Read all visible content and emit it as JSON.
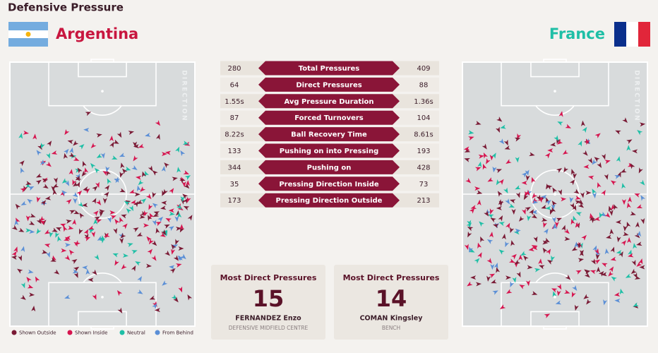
{
  "header": {
    "title": "Defensive Pressure"
  },
  "teams": [
    {
      "name": "Argentina"
    },
    {
      "name": "France"
    }
  ],
  "stats": {
    "rows": [
      {
        "left": "280",
        "label": "Total Pressures",
        "right": "409"
      },
      {
        "left": "64",
        "label": "Direct Pressures",
        "right": "88"
      },
      {
        "left": "1.55s",
        "label": "Avg Pressure Duration",
        "right": "1.36s"
      },
      {
        "left": "87",
        "label": "Forced Turnovers",
        "right": "104"
      },
      {
        "left": "8.22s",
        "label": "Ball Recovery Time",
        "right": "8.61s"
      },
      {
        "left": "133",
        "label": "Pushing on into Pressing",
        "right": "193"
      },
      {
        "left": "344",
        "label": "Pushing on",
        "right": "428"
      },
      {
        "left": "35",
        "label": "Pressing Direction Inside",
        "right": "73"
      },
      {
        "left": "173",
        "label": "Pressing Direction Outside",
        "right": "213"
      }
    ]
  },
  "cards": [
    {
      "title": "Most Direct Pressures",
      "value": "15",
      "player": "FERNANDEZ Enzo",
      "position": "DEFENSIVE MIDFIELD CENTRE"
    },
    {
      "title": "Most Direct Pressures",
      "value": "14",
      "player": "COMAN Kingsley",
      "position": "BENCH"
    }
  ],
  "pitch_label": "DIRECTION",
  "legend": [
    {
      "label": "Shown Outside",
      "color": "#7a1a35"
    },
    {
      "label": "Shown Inside",
      "color": "#d6154f"
    },
    {
      "label": "Neutral",
      "color": "#1fbfa6"
    },
    {
      "label": "From Behind",
      "color": "#5b8fd6"
    }
  ]
}
